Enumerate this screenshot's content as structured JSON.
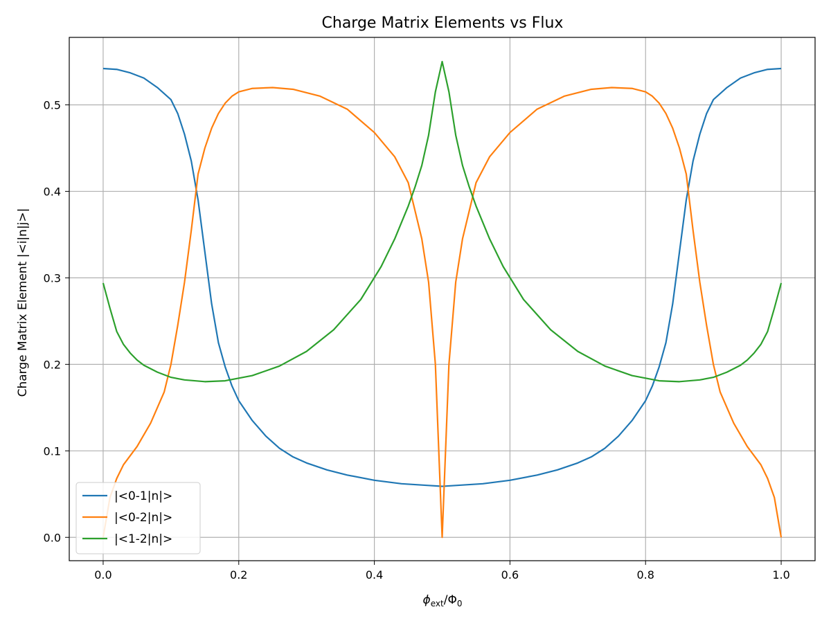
{
  "chart_data": {
    "type": "line",
    "title": "Charge Matrix Elements vs Flux",
    "xlabel": {
      "base": "ϕ",
      "sub": "ext",
      "rest": "/Φ",
      "sub2": "0"
    },
    "ylabel": "Charge Matrix Element |<i|n|j>|",
    "xlim": [
      -0.05,
      1.05
    ],
    "ylim": [
      -0.027,
      0.578
    ],
    "xticks": [
      0.0,
      0.2,
      0.4,
      0.6,
      0.8,
      1.0
    ],
    "xtick_labels": [
      "0.0",
      "0.2",
      "0.4",
      "0.6",
      "0.8",
      "1.0"
    ],
    "yticks": [
      0.0,
      0.1,
      0.2,
      0.3,
      0.4,
      0.5
    ],
    "ytick_labels": [
      "0.0",
      "0.1",
      "0.2",
      "0.3",
      "0.4",
      "0.5"
    ],
    "grid": true,
    "legend_position": "lower-left",
    "series": [
      {
        "name": "|<0-1|n|>",
        "color": "#1f77b4",
        "x": [
          0.0,
          0.02,
          0.04,
          0.06,
          0.08,
          0.1,
          0.11,
          0.12,
          0.13,
          0.14,
          0.15,
          0.16,
          0.17,
          0.18,
          0.19,
          0.2,
          0.22,
          0.24,
          0.26,
          0.28,
          0.3,
          0.33,
          0.36,
          0.4,
          0.44,
          0.48,
          0.5,
          0.52,
          0.56,
          0.6,
          0.64,
          0.67,
          0.7,
          0.72,
          0.74,
          0.76,
          0.78,
          0.8,
          0.81,
          0.82,
          0.83,
          0.84,
          0.85,
          0.86,
          0.87,
          0.88,
          0.89,
          0.9,
          0.92,
          0.94,
          0.96,
          0.98,
          1.0
        ],
        "y": [
          0.542,
          0.541,
          0.537,
          0.531,
          0.52,
          0.506,
          0.49,
          0.466,
          0.435,
          0.39,
          0.33,
          0.27,
          0.225,
          0.197,
          0.175,
          0.158,
          0.135,
          0.117,
          0.103,
          0.093,
          0.086,
          0.078,
          0.072,
          0.066,
          0.062,
          0.06,
          0.059,
          0.06,
          0.062,
          0.066,
          0.072,
          0.078,
          0.086,
          0.093,
          0.103,
          0.117,
          0.135,
          0.158,
          0.175,
          0.197,
          0.225,
          0.27,
          0.33,
          0.39,
          0.435,
          0.466,
          0.49,
          0.506,
          0.52,
          0.531,
          0.537,
          0.541,
          0.542
        ]
      },
      {
        "name": "|<0-2|n|>",
        "color": "#ff7f0e",
        "x": [
          0.0,
          0.01,
          0.02,
          0.03,
          0.05,
          0.07,
          0.09,
          0.1,
          0.11,
          0.12,
          0.13,
          0.14,
          0.15,
          0.16,
          0.17,
          0.18,
          0.19,
          0.2,
          0.22,
          0.25,
          0.28,
          0.32,
          0.36,
          0.4,
          0.43,
          0.45,
          0.47,
          0.48,
          0.49,
          0.5,
          0.51,
          0.52,
          0.53,
          0.55,
          0.57,
          0.6,
          0.64,
          0.68,
          0.72,
          0.75,
          0.78,
          0.8,
          0.81,
          0.82,
          0.83,
          0.84,
          0.85,
          0.86,
          0.87,
          0.88,
          0.89,
          0.9,
          0.91,
          0.93,
          0.95,
          0.97,
          0.98,
          0.99,
          1.0
        ],
        "y": [
          0.0,
          0.046,
          0.068,
          0.084,
          0.105,
          0.132,
          0.168,
          0.2,
          0.245,
          0.295,
          0.355,
          0.42,
          0.45,
          0.473,
          0.49,
          0.502,
          0.51,
          0.515,
          0.519,
          0.52,
          0.518,
          0.51,
          0.495,
          0.468,
          0.44,
          0.41,
          0.345,
          0.295,
          0.2,
          0.0,
          0.2,
          0.295,
          0.345,
          0.41,
          0.44,
          0.468,
          0.495,
          0.51,
          0.518,
          0.52,
          0.519,
          0.515,
          0.51,
          0.502,
          0.49,
          0.473,
          0.45,
          0.42,
          0.355,
          0.295,
          0.245,
          0.2,
          0.168,
          0.132,
          0.105,
          0.084,
          0.068,
          0.046,
          0.0
        ]
      },
      {
        "name": "|<1-2|n|>",
        "color": "#2ca02c",
        "x": [
          0.0,
          0.01,
          0.02,
          0.03,
          0.04,
          0.05,
          0.06,
          0.08,
          0.1,
          0.12,
          0.15,
          0.18,
          0.22,
          0.26,
          0.3,
          0.34,
          0.38,
          0.41,
          0.43,
          0.45,
          0.46,
          0.47,
          0.48,
          0.49,
          0.5,
          0.51,
          0.52,
          0.53,
          0.54,
          0.55,
          0.57,
          0.59,
          0.62,
          0.66,
          0.7,
          0.74,
          0.78,
          0.82,
          0.85,
          0.88,
          0.9,
          0.92,
          0.94,
          0.95,
          0.96,
          0.97,
          0.98,
          0.99,
          1.0
        ],
        "y": [
          0.294,
          0.265,
          0.238,
          0.223,
          0.213,
          0.205,
          0.199,
          0.191,
          0.185,
          0.182,
          0.18,
          0.181,
          0.187,
          0.198,
          0.215,
          0.24,
          0.275,
          0.313,
          0.345,
          0.383,
          0.405,
          0.43,
          0.465,
          0.515,
          0.55,
          0.515,
          0.465,
          0.43,
          0.405,
          0.383,
          0.345,
          0.313,
          0.275,
          0.24,
          0.215,
          0.198,
          0.187,
          0.181,
          0.18,
          0.182,
          0.185,
          0.191,
          0.199,
          0.205,
          0.213,
          0.223,
          0.238,
          0.265,
          0.294
        ]
      }
    ]
  }
}
